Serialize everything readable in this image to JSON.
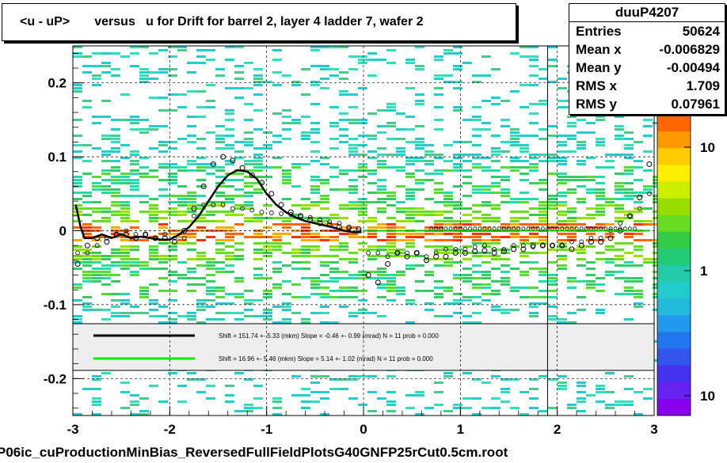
{
  "title": "<u - uP>       versus   u for Drift for barrel 2, layer 4 ladder 7, wafer 2",
  "stats": {
    "name": "duuP4207",
    "rows": [
      {
        "label": "Entries",
        "value": "50624"
      },
      {
        "label": "Mean x",
        "value": "-0.006829"
      },
      {
        "label": "Mean y",
        "value": "-0.00494"
      },
      {
        "label": "RMS x",
        "value": "1.709"
      },
      {
        "label": "RMS y",
        "value": "0.07961"
      }
    ]
  },
  "footer": "P06ic_cuProductionMinBias_ReversedFullFieldPlotsG40GNFP25rCut0.5cm.root",
  "legend": [
    {
      "color": "#000000",
      "text": "Shift =    151.74 +- 5.33 (mkm) Slope =    -0.46 +- 0.99 (mrad)  N = 11 prob = 0.000"
    },
    {
      "color": "#00ee00",
      "text": "Shift =    16.96 +- 5.46 (mkm) Slope =    5.14 +- 1.02 (mrad)  N = 11 prob = 0.000"
    }
  ],
  "chart_data": {
    "type": "heatmap",
    "xlim": [
      -3,
      3
    ],
    "ylim": [
      -0.25,
      0.25
    ],
    "x_ticks": [
      "-3",
      "-2",
      "-1",
      "0",
      "1",
      "2",
      "3"
    ],
    "y_ticks": [
      "-0.2",
      "-0.1",
      "0",
      "0.1",
      "0.2"
    ],
    "colorbar_ticks": [
      "10",
      "1",
      "10"
    ],
    "colorbar_scale": "log",
    "grid": true,
    "markers_profile": {
      "x": [
        -2.95,
        -2.85,
        -2.75,
        -2.65,
        -2.55,
        -2.45,
        -2.35,
        -2.25,
        -2.15,
        -2.05,
        -1.95,
        -1.85,
        -1.75,
        -1.65,
        -1.55,
        -1.45,
        -1.35,
        -1.25,
        -1.15,
        -1.05,
        -0.95,
        -0.85,
        -0.75,
        -0.65,
        -0.55,
        -0.45,
        -0.35,
        -0.25,
        -0.15,
        -0.05,
        0.05,
        0.15,
        0.25,
        0.35,
        0.45,
        0.55,
        0.65,
        0.75,
        0.85,
        0.95,
        1.05,
        1.15,
        1.25,
        1.35,
        1.45,
        1.55,
        1.65,
        1.75,
        1.85,
        1.95,
        2.05,
        2.15,
        2.25,
        2.35,
        2.45,
        2.55,
        2.65,
        2.75,
        2.85,
        2.95
      ],
      "y": [
        -0.045,
        -0.02,
        -0.01,
        -0.015,
        -0.005,
        -0.005,
        -0.01,
        -0.005,
        -0.01,
        -0.01,
        -0.015,
        0.0,
        0.03,
        0.06,
        0.09,
        0.1,
        0.095,
        0.085,
        0.075,
        0.065,
        0.05,
        0.035,
        0.025,
        0.02,
        0.015,
        0.01,
        0.008,
        0.005,
        0.004,
        0.002,
        -0.06,
        -0.07,
        -0.045,
        -0.03,
        -0.035,
        -0.03,
        -0.04,
        -0.035,
        -0.035,
        -0.03,
        -0.03,
        -0.028,
        -0.027,
        -0.03,
        -0.028,
        -0.025,
        -0.025,
        -0.02,
        -0.02,
        -0.02,
        -0.02,
        -0.025,
        -0.02,
        -0.015,
        -0.015,
        -0.01,
        0.0,
        0.02,
        0.045,
        0.09
      ]
    },
    "markers_mean": {
      "x": [
        -2.95,
        -2.85,
        -2.75,
        -2.65,
        -2.55,
        -2.45,
        -2.35,
        -2.25,
        -2.15,
        -2.05,
        -1.95,
        -1.85,
        -1.75,
        -1.65,
        -1.55,
        -1.45,
        -1.35,
        -1.25,
        -1.15,
        -1.05,
        -0.95,
        -0.85,
        -0.75,
        -0.65,
        -0.55,
        -0.45,
        -0.35,
        -0.25,
        -0.15,
        -0.05,
        0.05,
        0.15,
        0.25,
        0.35,
        0.45,
        0.55,
        0.65,
        0.75,
        0.85,
        0.95,
        1.05,
        1.15,
        1.25,
        1.35,
        1.45,
        1.55,
        1.65,
        1.75,
        1.85,
        1.95,
        2.05,
        2.15,
        2.25,
        2.35,
        2.45,
        2.55,
        2.65,
        2.75,
        2.85,
        2.95
      ],
      "y": [
        -0.03,
        -0.03,
        -0.02,
        -0.01,
        -0.005,
        0.0,
        -0.005,
        -0.005,
        -0.01,
        -0.005,
        -0.01,
        -0.01,
        0.02,
        0.035,
        0.035,
        0.035,
        0.03,
        0.03,
        0.028,
        0.025,
        0.024,
        0.023,
        0.022,
        0.02,
        0.018,
        0.015,
        0.012,
        0.01,
        0.005,
        0.0,
        -0.03,
        -0.03,
        -0.035,
        -0.03,
        -0.03,
        -0.03,
        -0.035,
        -0.03,
        -0.025,
        -0.025,
        -0.025,
        -0.022,
        -0.02,
        -0.025,
        -0.025,
        -0.02,
        -0.02,
        -0.022,
        -0.02,
        -0.02,
        -0.02,
        -0.015,
        -0.015,
        -0.01,
        -0.01,
        0.0,
        0.01,
        0.02,
        0.03,
        0.05
      ]
    },
    "flat_markers": {
      "x_from": 0.7,
      "x_to": 2.8,
      "y": 0.003
    },
    "fit_black": {
      "x": [
        -2.97,
        -2.92,
        -2.88,
        -2.8,
        -2.7,
        -2.6,
        -2.5,
        -2.4,
        -2.3,
        -2.2,
        -2.1,
        -2.0,
        -1.9,
        -1.8,
        -1.7,
        -1.6,
        -1.5,
        -1.4,
        -1.3,
        -1.2,
        -1.1,
        -1.0,
        -0.9,
        -0.8,
        -0.7,
        -0.6,
        -0.5,
        -0.4,
        -0.3,
        -0.2,
        -0.1,
        -0.02
      ],
      "y": [
        0.035,
        0.005,
        -0.01,
        -0.01,
        -0.005,
        -0.01,
        -0.005,
        -0.01,
        -0.008,
        -0.01,
        -0.012,
        -0.012,
        -0.005,
        0.005,
        0.02,
        0.04,
        0.06,
        0.075,
        0.082,
        0.08,
        0.07,
        0.05,
        0.035,
        0.025,
        0.018,
        0.013,
        0.01,
        0.007,
        0.004,
        0.0,
        -0.002,
        -0.002
      ]
    },
    "fit_green": {
      "x": [
        0.0,
        2.95
      ],
      "y": [
        0.0,
        0.0
      ]
    }
  }
}
